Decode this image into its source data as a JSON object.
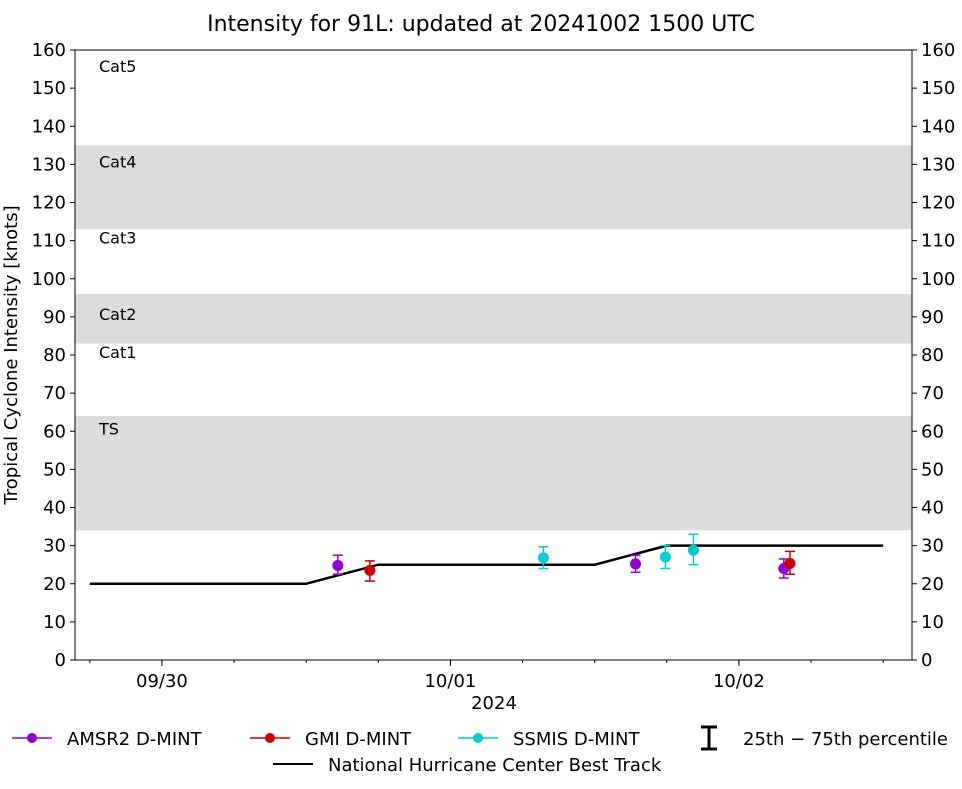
{
  "chart_data": {
    "type": "scatter",
    "title": "Intensity for 91L: updated at 20241002 1500 UTC",
    "xlabel": "2024",
    "ylabel": "Tropical Cyclone Intensity [knots]",
    "ylim": [
      0,
      160
    ],
    "xlim": [
      "2024-09-29T16:46",
      "2024-10-02T14:24"
    ],
    "yticks": [
      0,
      10,
      20,
      30,
      40,
      50,
      60,
      70,
      80,
      90,
      100,
      110,
      120,
      130,
      140,
      150,
      160
    ],
    "xticks": [
      {
        "t": "2024-09-30T00:00",
        "label": "09/30"
      },
      {
        "t": "2024-10-01T00:00",
        "label": "10/01"
      },
      {
        "t": "2024-10-02T00:00",
        "label": "10/02"
      }
    ],
    "bands": [
      {
        "label": "TS",
        "from": 34,
        "to": 64,
        "shaded": true,
        "label_y": 60
      },
      {
        "label": "Cat1",
        "from": 64,
        "to": 83,
        "shaded": false,
        "label_y": 80
      },
      {
        "label": "Cat2",
        "from": 83,
        "to": 96,
        "shaded": true,
        "label_y": 90
      },
      {
        "label": "Cat3",
        "from": 96,
        "to": 113,
        "shaded": false,
        "label_y": 110
      },
      {
        "label": "Cat4",
        "from": 113,
        "to": 135,
        "shaded": true,
        "label_y": 130
      },
      {
        "label": "Cat5",
        "from": 135,
        "to": 160,
        "shaded": false,
        "label_y": 155
      }
    ],
    "band_color": "#dcdcdc",
    "series": [
      {
        "name": "AMSR2 D-MINT",
        "color": "#9400d3",
        "points": [
          {
            "t": "2024-09-30T14:38",
            "y": 24.8,
            "lo": 22.5,
            "hi": 27.5
          },
          {
            "t": "2024-10-01T15:24",
            "y": 25.2,
            "lo": 23,
            "hi": 27.5
          },
          {
            "t": "2024-10-02T03:44",
            "y": 24,
            "lo": 21.5,
            "hi": 26.5
          }
        ]
      },
      {
        "name": "GMI D-MINT",
        "color": "#cc0000",
        "points": [
          {
            "t": "2024-09-30T17:18",
            "y": 23.5,
            "lo": 20.7,
            "hi": 26
          },
          {
            "t": "2024-10-02T04:15",
            "y": 25.3,
            "lo": 22.5,
            "hi": 28.5
          }
        ]
      },
      {
        "name": "SSMIS D-MINT",
        "color": "#00ced1",
        "points": [
          {
            "t": "2024-10-01T07:44",
            "y": 26.8,
            "lo": 24,
            "hi": 29.7
          },
          {
            "t": "2024-10-01T17:53",
            "y": 27,
            "lo": 24,
            "hi": 30
          },
          {
            "t": "2024-10-01T20:13",
            "y": 28.8,
            "lo": 25,
            "hi": 33
          }
        ]
      }
    ],
    "best_track": {
      "name": "National Hurricane Center Best Track",
      "color": "#000000",
      "points": [
        {
          "t": "2024-09-29T18:00",
          "y": 20
        },
        {
          "t": "2024-09-30T12:00",
          "y": 20
        },
        {
          "t": "2024-09-30T18:00",
          "y": 25
        },
        {
          "t": "2024-10-01T12:00",
          "y": 25
        },
        {
          "t": "2024-10-01T18:00",
          "y": 30
        },
        {
          "t": "2024-10-02T12:00",
          "y": 30
        }
      ]
    },
    "legend": {
      "placement": "bottom",
      "percentile_label": "25th − 75th percentile"
    }
  }
}
